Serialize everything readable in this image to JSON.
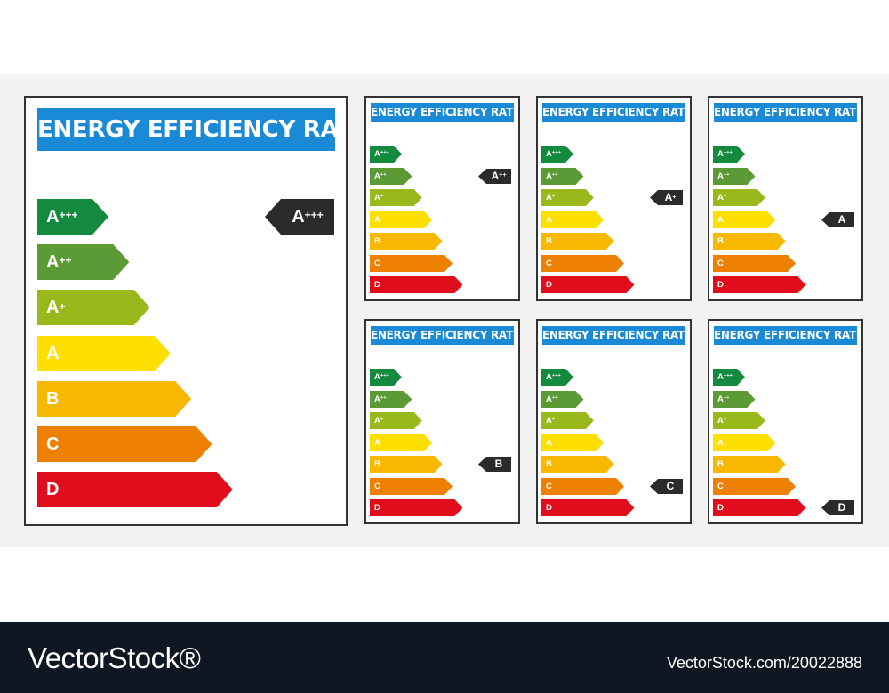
{
  "title": "ENERGY EFFICIENCY RATING",
  "classes": [
    {
      "letter": "A",
      "sup": "+++",
      "color": "#138a3d"
    },
    {
      "letter": "A",
      "sup": "++",
      "color": "#5b9a35"
    },
    {
      "letter": "A",
      "sup": "+",
      "color": "#99b81c"
    },
    {
      "letter": "A",
      "sup": "",
      "color": "#fde000"
    },
    {
      "letter": "B",
      "sup": "",
      "color": "#f9b800"
    },
    {
      "letter": "C",
      "sup": "",
      "color": "#ee8000"
    },
    {
      "letter": "D",
      "sup": "",
      "color": "#e00d1d"
    }
  ],
  "labels": [
    {
      "id": "large",
      "rating": {
        "letter": "A",
        "sup": "+++"
      }
    },
    {
      "id": "a-plus-plus",
      "rating": {
        "letter": "A",
        "sup": "++"
      }
    },
    {
      "id": "a-plus",
      "rating": {
        "letter": "A",
        "sup": "+"
      }
    },
    {
      "id": "a",
      "rating": {
        "letter": "A",
        "sup": ""
      }
    },
    {
      "id": "b",
      "rating": {
        "letter": "B",
        "sup": ""
      }
    },
    {
      "id": "c",
      "rating": {
        "letter": "C",
        "sup": ""
      }
    },
    {
      "id": "d",
      "rating": {
        "letter": "D",
        "sup": ""
      }
    }
  ],
  "marker_color": "#2b2b2b",
  "footer": {
    "brand": "VectorStock®",
    "image_id": "VectorStock.com/20022888"
  }
}
